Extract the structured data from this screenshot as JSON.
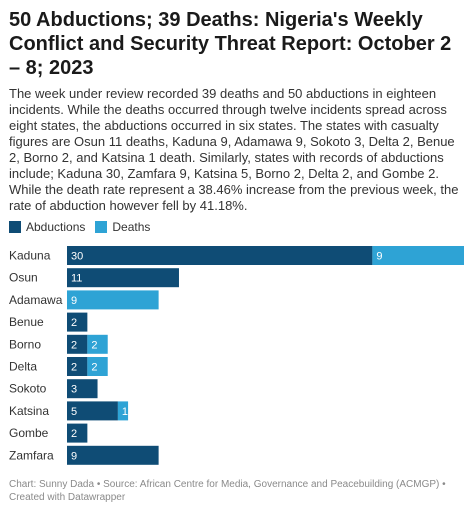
{
  "header": {
    "title": "50 Abductions; 39 Deaths: Nigeria's Weekly Conflict and Security Threat Report: October 2 – 8; 2023",
    "description": "The week under review recorded 39 deaths and 50 abductions in eighteen incidents. While the deaths occurred through twelve incidents spread across eight states, the abductions occurred in six states. The states with casualty figures are Osun 11 deaths, Kaduna 9, Adamawa 9, Sokoto 3, Delta 2, Benue 2, Borno 2, and Katsina 1 death. Similarly, states with records of abductions include; Kaduna 30, Zamfara 9, Katsina 5, Borno 2, Delta 2, and Gombe 2. While the death rate represent a 38.46% increase from the previous week, the rate of abduction however fell by 41.18%."
  },
  "footer": {
    "credit": "Chart: Sunny Dada • Source: African Centre for Media, Governance and Peacebuilding (ACMGP) • Created with Datawrapper"
  },
  "chart_data": {
    "type": "bar",
    "orientation": "horizontal",
    "stacked": true,
    "categories": [
      "Kaduna",
      "Osun",
      "Adamawa",
      "Benue",
      "Borno",
      "Delta",
      "Sokoto",
      "Katsina",
      "Gombe",
      "Zamfara"
    ],
    "series": [
      {
        "name": "Abductions",
        "color": "#0f4c75",
        "values": [
          30,
          0,
          0,
          0,
          2,
          2,
          0,
          5,
          2,
          9
        ]
      },
      {
        "name": "Deaths",
        "color": "#2ea3d5",
        "values": [
          9,
          11,
          9,
          2,
          2,
          2,
          3,
          1,
          0,
          0
        ]
      }
    ],
    "bar_colors_by_category": {
      "Osun": "#0f4c75",
      "Benue": "#0f4c75",
      "Sokoto": "#0f4c75"
    },
    "xlim": [
      0,
      39
    ],
    "legend_position": "top-left",
    "grid": false
  }
}
